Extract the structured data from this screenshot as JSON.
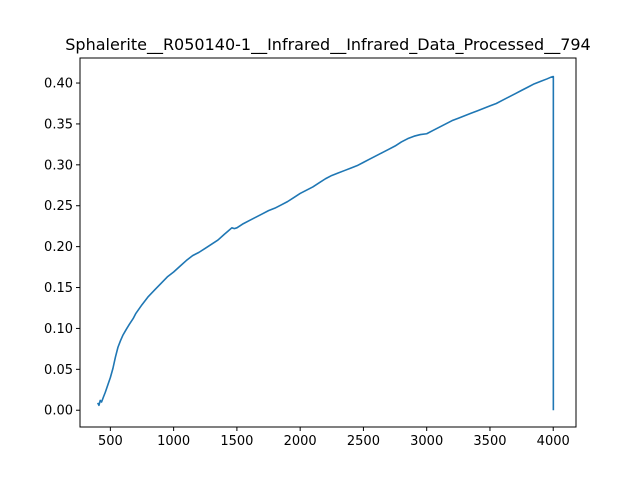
{
  "chart_data": {
    "type": "line",
    "title": "Sphalerite__R050140-1__Infrared__Infrared_Data_Processed__794",
    "xlabel": "",
    "ylabel": "",
    "xlim": [
      260,
      4180
    ],
    "ylim": [
      -0.0205,
      0.4306
    ],
    "grid": false,
    "legend": "none",
    "xticks": [
      500,
      1000,
      1500,
      2000,
      2500,
      3000,
      3500,
      4000
    ],
    "xtick_labels": [
      "500",
      "1000",
      "1500",
      "2000",
      "2500",
      "3000",
      "3500",
      "4000"
    ],
    "yticks": [
      0.0,
      0.05,
      0.1,
      0.15,
      0.2,
      0.25,
      0.3,
      0.35,
      0.4
    ],
    "ytick_labels": [
      "0.00",
      "0.05",
      "0.10",
      "0.15",
      "0.20",
      "0.25",
      "0.30",
      "0.35",
      "0.40"
    ],
    "series": [
      {
        "color": "#1f77b4",
        "x": [
          400,
          410,
          420,
          430,
          445,
          460,
          480,
          500,
          520,
          540,
          560,
          580,
          600,
          615,
          630,
          650,
          680,
          700,
          750,
          800,
          850,
          900,
          950,
          1000,
          1050,
          1100,
          1150,
          1200,
          1250,
          1300,
          1350,
          1400,
          1430,
          1460,
          1480,
          1500,
          1520,
          1550,
          1600,
          1650,
          1700,
          1750,
          1800,
          1850,
          1900,
          1950,
          2000,
          2050,
          2100,
          2150,
          2200,
          2250,
          2300,
          2350,
          2400,
          2450,
          2500,
          2550,
          2600,
          2650,
          2700,
          2750,
          2800,
          2850,
          2900,
          2950,
          3000,
          3050,
          3100,
          3150,
          3200,
          3250,
          3300,
          3350,
          3400,
          3450,
          3500,
          3550,
          3600,
          3650,
          3700,
          3750,
          3800,
          3850,
          3900,
          3950,
          3980,
          4000,
          4001,
          4001
        ],
        "y": [
          0.009,
          0.006,
          0.012,
          0.01,
          0.016,
          0.022,
          0.031,
          0.04,
          0.051,
          0.065,
          0.077,
          0.085,
          0.092,
          0.096,
          0.1,
          0.105,
          0.112,
          0.118,
          0.129,
          0.139,
          0.147,
          0.155,
          0.163,
          0.169,
          0.176,
          0.183,
          0.189,
          0.193,
          0.198,
          0.203,
          0.208,
          0.215,
          0.219,
          0.223,
          0.222,
          0.223,
          0.225,
          0.228,
          0.232,
          0.236,
          0.24,
          0.244,
          0.247,
          0.251,
          0.255,
          0.26,
          0.265,
          0.269,
          0.273,
          0.278,
          0.283,
          0.287,
          0.29,
          0.293,
          0.296,
          0.299,
          0.303,
          0.307,
          0.311,
          0.315,
          0.319,
          0.323,
          0.328,
          0.332,
          0.335,
          0.337,
          0.338,
          0.342,
          0.346,
          0.35,
          0.354,
          0.357,
          0.36,
          0.363,
          0.366,
          0.369,
          0.372,
          0.375,
          0.379,
          0.383,
          0.387,
          0.391,
          0.395,
          0.399,
          0.402,
          0.405,
          0.407,
          0.408,
          0.408,
          0.0
        ]
      }
    ]
  }
}
